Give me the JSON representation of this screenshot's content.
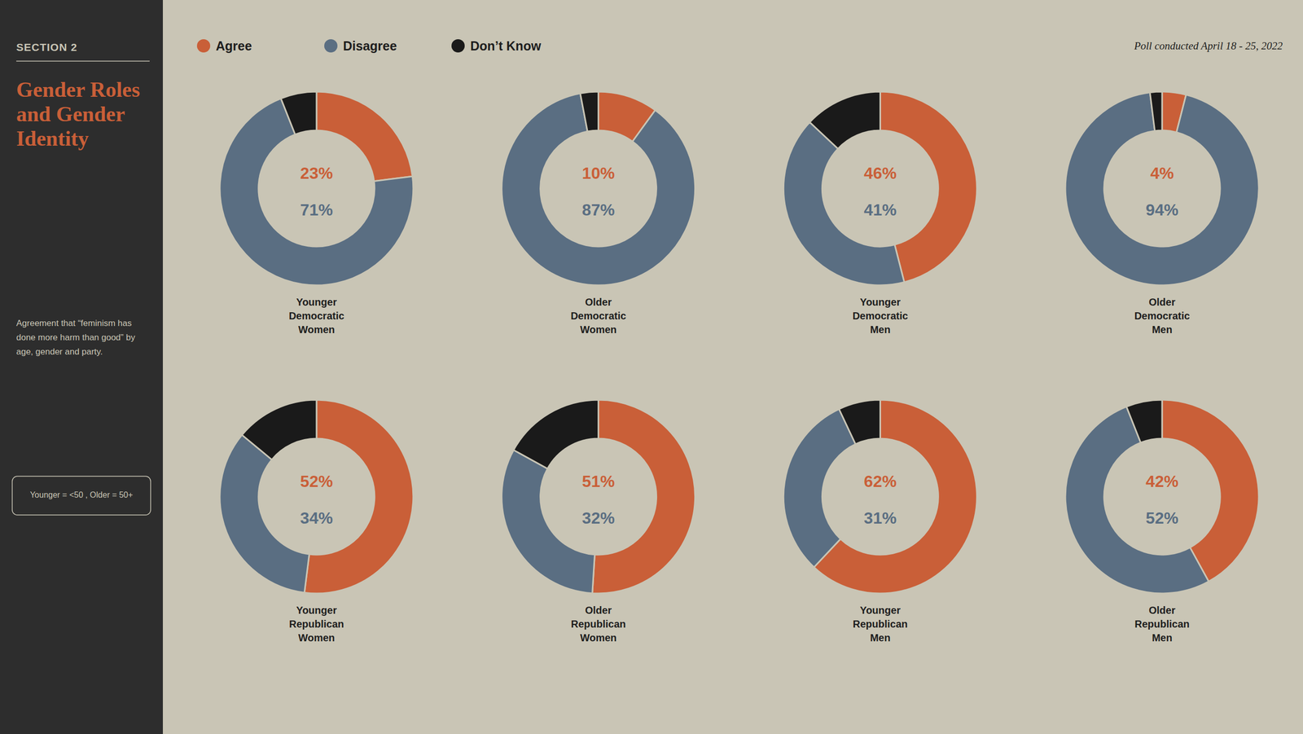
{
  "chart_data": {
    "type": "donut",
    "title": "Gender Roles\nand Gender\nIdentity",
    "subtitle": "Agreement that “feminism has\ndone more harm than good” by\nage, gender and party.",
    "annotations": [
      "SECTION 2",
      "Younger = <50 , Older = 50+",
      "Poll conducted April 18 - 25, 2022"
    ],
    "categories": [
      "Agree",
      "Disagree",
      "Don’t Know"
    ],
    "colors": [
      "#c95f38",
      "#5a6e82",
      "#1a1a1a"
    ],
    "legend": "top",
    "data_labels": true,
    "series": [
      {
        "name": "Younger\nDemocratic\nWomen",
        "values": [
          23,
          71,
          6
        ],
        "value_labels": [
          "23%",
          "71%",
          null
        ]
      },
      {
        "name": "Older\nDemocratic\nWomen",
        "values": [
          10,
          87,
          3
        ],
        "value_labels": [
          "10%",
          "87%",
          null
        ]
      },
      {
        "name": "Younger\nDemocratic\nMen",
        "values": [
          46,
          41,
          13
        ],
        "value_labels": [
          "46%",
          "41%",
          null
        ]
      },
      {
        "name": "Older\nDemocratic\nMen",
        "values": [
          4,
          94,
          2
        ],
        "value_labels": [
          "4%",
          "94%",
          null
        ]
      },
      {
        "name": "Younger\nRepublican\nWomen",
        "values": [
          52,
          34,
          14
        ],
        "value_labels": [
          "52%",
          "34%",
          null
        ]
      },
      {
        "name": "Older\nRepublican\nWomen",
        "values": [
          51,
          32,
          17
        ],
        "value_labels": [
          "51%",
          "32%",
          null
        ]
      },
      {
        "name": "Younger\nRepublican\nMen",
        "values": [
          62,
          31,
          7
        ],
        "value_labels": [
          "62%",
          "31%",
          null
        ]
      },
      {
        "name": "Older\nRepublican\nMen",
        "values": [
          42,
          52,
          6
        ],
        "value_labels": [
          "42%",
          "52%",
          null
        ]
      }
    ]
  }
}
